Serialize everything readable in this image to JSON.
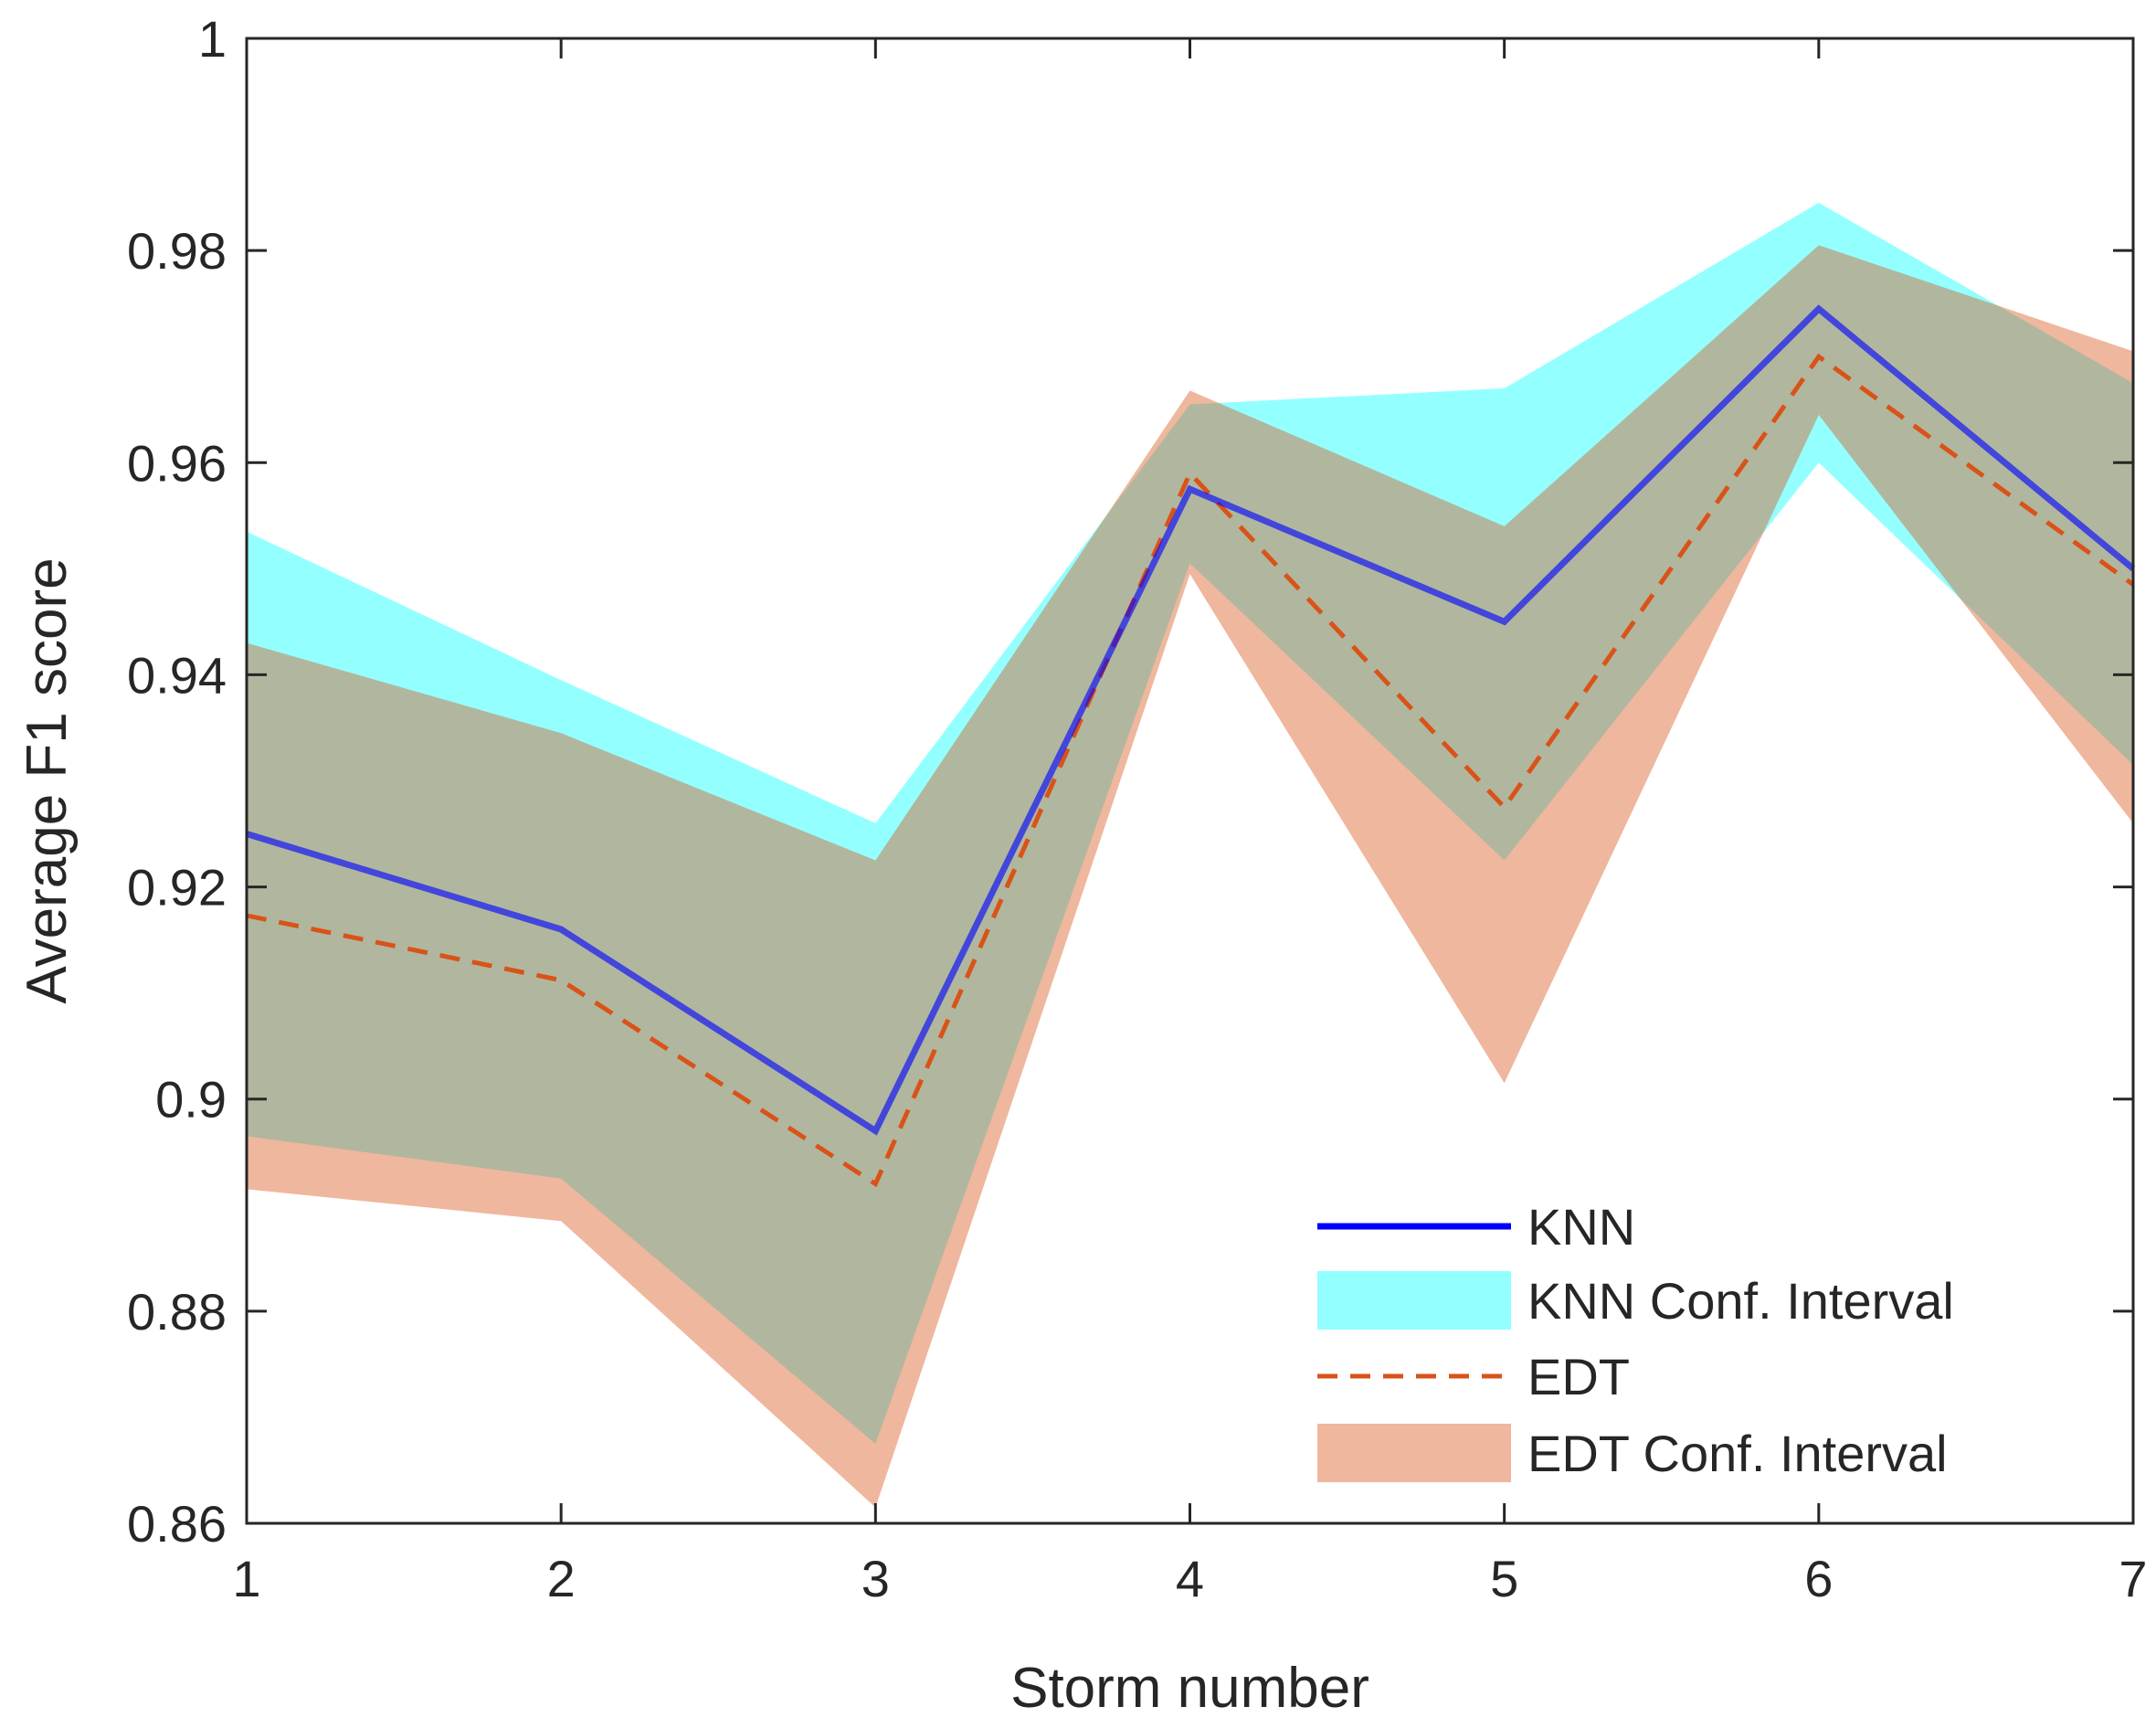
{
  "chart_data": {
    "type": "line",
    "title": "",
    "xlabel": "Storm number",
    "ylabel": "Average F1 score",
    "x": [
      1,
      2,
      3,
      4,
      5,
      6,
      7
    ],
    "xlim": [
      1,
      7
    ],
    "ylim": [
      0.86,
      1.0
    ],
    "x_ticks": [
      "1",
      "2",
      "3",
      "4",
      "5",
      "6",
      "7"
    ],
    "y_ticks": [
      0.86,
      0.88,
      0.9,
      0.92,
      0.94,
      0.96,
      0.98,
      1
    ],
    "y_tick_labels": [
      "0.86",
      "0.88",
      "0.9",
      "0.92",
      "0.94",
      "0.96",
      "0.98",
      "1"
    ],
    "grid": false,
    "legend_position": "bottom-right",
    "series": [
      {
        "name": "KNN",
        "style": "solid",
        "color": "#0000FF",
        "values": [
          0.925,
          0.916,
          0.897,
          0.9575,
          0.945,
          0.9745,
          0.95
        ]
      },
      {
        "name": "EDT",
        "style": "dashed",
        "color": "#D95319",
        "values": [
          0.9173,
          0.9112,
          0.892,
          0.959,
          0.9275,
          0.97,
          0.9485
        ]
      }
    ],
    "bands": [
      {
        "name": "KNN Conf. Interval",
        "color": "#00FFFF",
        "opacity": 0.42,
        "upper": [
          0.9535,
          0.9395,
          0.926,
          0.9655,
          0.967,
          0.9845,
          0.9675
        ],
        "lower": [
          0.8965,
          0.8925,
          0.8675,
          0.9505,
          0.9225,
          0.96,
          0.9315
        ]
      },
      {
        "name": "EDT Conf. Interval",
        "color": "#D95319",
        "opacity": 0.42,
        "upper": [
          0.943,
          0.9345,
          0.9225,
          0.9668,
          0.954,
          0.9805,
          0.9705
        ],
        "lower": [
          0.8915,
          0.8885,
          0.8615,
          0.9495,
          0.9015,
          0.9645,
          0.926
        ]
      }
    ],
    "legend": [
      "KNN",
      "KNN Conf. Interval",
      "EDT",
      "EDT Conf. Interval"
    ]
  }
}
